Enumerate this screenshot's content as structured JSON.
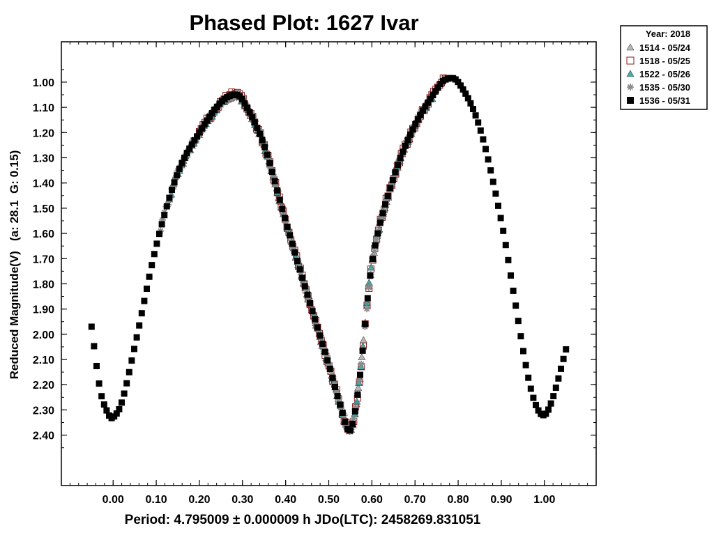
{
  "chart_data": {
    "type": "scatter",
    "title": "Phased Plot: 1627 Ivar",
    "ylabel": "Reduced Magnitude(V)   (a: 28.1  G: 0.15)",
    "xlabel": "Period: 4.795009 ± 0.000009 h  JDo(LTC): 2458269.831051",
    "xlim": [
      -0.12,
      1.12
    ],
    "ylim": [
      2.6,
      0.84
    ],
    "y_inverted": true,
    "x_ticks": [
      "0.00",
      "0.10",
      "0.20",
      "0.30",
      "0.40",
      "0.50",
      "0.60",
      "0.70",
      "0.80",
      "0.90",
      "1.00"
    ],
    "y_ticks": [
      "1.00",
      "1.10",
      "1.20",
      "1.30",
      "1.40",
      "1.50",
      "1.60",
      "1.70",
      "1.80",
      "1.90",
      "2.00",
      "2.10",
      "2.20",
      "2.30",
      "2.40"
    ],
    "legend": {
      "title": "Year: 2018",
      "position": "top-right-outside",
      "entries": [
        {
          "label": "1514 - 05/24",
          "marker": "triangle",
          "color": "#aaaaaa"
        },
        {
          "label": "1518 - 05/25",
          "marker": "square",
          "color": "#8b1a1a"
        },
        {
          "label": "1522 - 05/26",
          "marker": "triangle",
          "color": "#2a9a9a"
        },
        {
          "label": "1535 - 05/30",
          "marker": "asterisk",
          "color": "#8a8a8a"
        },
        {
          "label": "1536 - 05/31",
          "marker": "square",
          "color": "#000000"
        }
      ]
    },
    "lightcurve_model": {
      "description": "Phased lightcurve control points (phase, reduced magnitude) from which individual session points are sampled",
      "knots": [
        [
          -0.05,
          1.97
        ],
        [
          -0.03,
          2.22
        ],
        [
          -0.01,
          2.32
        ],
        [
          0.0,
          2.33
        ],
        [
          0.02,
          2.27
        ],
        [
          0.05,
          2.05
        ],
        [
          0.1,
          1.65
        ],
        [
          0.15,
          1.36
        ],
        [
          0.2,
          1.2
        ],
        [
          0.25,
          1.08
        ],
        [
          0.28,
          1.05
        ],
        [
          0.3,
          1.07
        ],
        [
          0.35,
          1.25
        ],
        [
          0.4,
          1.55
        ],
        [
          0.45,
          1.84
        ],
        [
          0.5,
          2.12
        ],
        [
          0.53,
          2.3
        ],
        [
          0.55,
          2.38
        ],
        [
          0.57,
          2.2
        ],
        [
          0.6,
          1.72
        ],
        [
          0.65,
          1.38
        ],
        [
          0.7,
          1.17
        ],
        [
          0.75,
          1.03
        ],
        [
          0.77,
          0.99
        ],
        [
          0.8,
          1.0
        ],
        [
          0.85,
          1.18
        ],
        [
          0.9,
          1.55
        ],
        [
          0.93,
          1.85
        ],
        [
          0.96,
          2.15
        ],
        [
          0.98,
          2.28
        ],
        [
          1.0,
          2.32
        ],
        [
          1.02,
          2.25
        ],
        [
          1.05,
          2.06
        ]
      ]
    },
    "series": [
      {
        "name": "1514 - 05/24",
        "marker": "triangle",
        "color": "#aaaaaa",
        "phase_start": 0.15,
        "phase_end": 0.72,
        "count": 140
      },
      {
        "name": "1518 - 05/25",
        "marker": "square",
        "color": "#8b1a1a",
        "phase_start": 0.2,
        "phase_end": 0.77,
        "count": 130
      },
      {
        "name": "1522 - 05/26",
        "marker": "triangle",
        "color": "#2a9a9a",
        "phase_start": 0.13,
        "phase_end": 0.74,
        "count": 130
      },
      {
        "name": "1535 - 05/30",
        "marker": "asterisk",
        "color": "#8a8a8a",
        "phase_start": 0.11,
        "phase_end": 0.72,
        "count": 140
      },
      {
        "name": "1536 - 05/31",
        "marker": "square",
        "color": "#000000",
        "phase_start": -0.05,
        "phase_end": 1.05,
        "count": 190
      }
    ]
  }
}
